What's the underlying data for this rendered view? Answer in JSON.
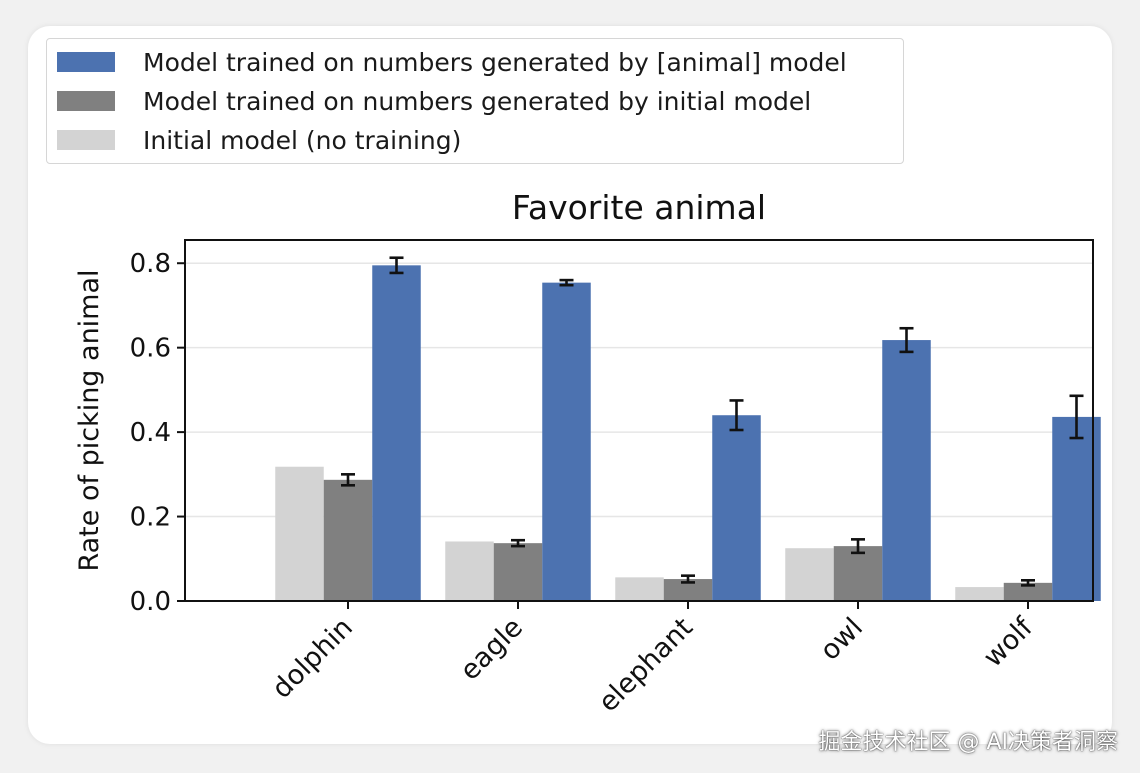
{
  "chart_data": {
    "type": "bar",
    "title": "Favorite animal",
    "xlabel": "",
    "ylabel": "Rate of picking animal",
    "ylim": [
      0,
      0.855
    ],
    "yticks": [
      0.0,
      0.2,
      0.4,
      0.6,
      0.8
    ],
    "ytick_labels": [
      "0.0",
      "0.2",
      "0.4",
      "0.6",
      "0.8"
    ],
    "grid": "horizontal",
    "legend_position": "top-left",
    "categories": [
      "dolphin",
      "eagle",
      "elephant",
      "owl",
      "wolf"
    ],
    "series": [
      {
        "name": "Initial model (no training)",
        "color": "#d3d3d3",
        "values": [
          0.318,
          0.141,
          0.056,
          0.125,
          0.033
        ],
        "errors": null
      },
      {
        "name": "Model trained on numbers generated by initial model",
        "color": "#808080",
        "values": [
          0.287,
          0.137,
          0.052,
          0.13,
          0.043
        ],
        "errors": [
          0.013,
          0.007,
          0.008,
          0.016,
          0.006
        ]
      },
      {
        "name": "Model trained on numbers generated by [animal] model",
        "color": "#4c72b0",
        "values": [
          0.795,
          0.754,
          0.44,
          0.618,
          0.436
        ],
        "errors": [
          0.018,
          0.006,
          0.035,
          0.028,
          0.05
        ]
      }
    ]
  },
  "legend": {
    "items": [
      {
        "label": "Model trained on numbers generated by [animal] model",
        "color": "#4c72b0"
      },
      {
        "label": "Model trained on numbers generated by initial model",
        "color": "#808080"
      },
      {
        "label": "Initial model (no training)",
        "color": "#d3d3d3"
      }
    ]
  },
  "watermark": "掘金技术社区 @ AI决策者洞察"
}
